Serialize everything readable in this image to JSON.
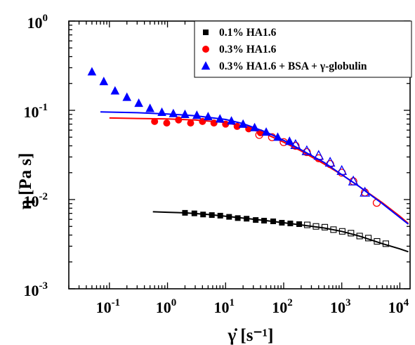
{
  "chart_data": {
    "type": "scatter",
    "xlabel": "γ̇ [s⁻¹]",
    "ylabel": "η [Pa s]",
    "xscale": "log",
    "yscale": "log",
    "xlim": [
      0.02,
      15000
    ],
    "ylim": [
      0.001,
      1
    ],
    "grid": false,
    "legend_position": "top-right",
    "x_ticks": [
      {
        "base": "10",
        "exp": "-1",
        "value": 0.1
      },
      {
        "base": "10",
        "exp": "0",
        "value": 1
      },
      {
        "base": "10",
        "exp": "1",
        "value": 10
      },
      {
        "base": "10",
        "exp": "2",
        "value": 100
      },
      {
        "base": "10",
        "exp": "3",
        "value": 1000
      },
      {
        "base": "10",
        "exp": "4",
        "value": 10000
      }
    ],
    "y_ticks": [
      {
        "base": "10",
        "exp": "-3",
        "value": 0.001
      },
      {
        "base": "10",
        "exp": "-2",
        "value": 0.01
      },
      {
        "base": "10",
        "exp": "-1",
        "value": 0.1
      },
      {
        "base": "10",
        "exp": "0",
        "value": 1
      }
    ],
    "series": [
      {
        "name": "0.1% HA1.6",
        "color": "#000000",
        "marker": "square",
        "filled_points": [
          [
            2.0,
            0.0071
          ],
          [
            2.9,
            0.007
          ],
          [
            4.1,
            0.0068
          ],
          [
            5.8,
            0.0067
          ],
          [
            8.1,
            0.0066
          ],
          [
            11.5,
            0.0064
          ],
          [
            16.2,
            0.0062
          ],
          [
            23,
            0.0061
          ],
          [
            33,
            0.0059
          ],
          [
            46,
            0.0058
          ],
          [
            66,
            0.0057
          ],
          [
            93,
            0.0055
          ],
          [
            130,
            0.0054
          ],
          [
            185,
            0.0053
          ]
        ],
        "open_points": [
          [
            255,
            0.0052
          ],
          [
            360,
            0.005
          ],
          [
            510,
            0.0049
          ],
          [
            720,
            0.0046
          ],
          [
            1020,
            0.0044
          ],
          [
            1440,
            0.0042
          ],
          [
            2030,
            0.0039
          ],
          [
            2870,
            0.0037
          ],
          [
            4050,
            0.0034
          ],
          [
            5730,
            0.0032
          ]
        ],
        "fit_curve": [
          [
            0.56,
            0.0073
          ],
          [
            1,
            0.0072
          ],
          [
            2,
            0.0071
          ],
          [
            5,
            0.0068
          ],
          [
            10,
            0.0065
          ],
          [
            20,
            0.0062
          ],
          [
            50,
            0.0058
          ],
          [
            100,
            0.0055
          ],
          [
            200,
            0.0052
          ],
          [
            500,
            0.0048
          ],
          [
            1000,
            0.0044
          ],
          [
            2000,
            0.0039
          ],
          [
            5000,
            0.0032
          ],
          [
            10000,
            0.0028
          ],
          [
            14000,
            0.0026
          ]
        ]
      },
      {
        "name": "0.3% HA1.6",
        "color": "#ff0000",
        "marker": "circle",
        "filled_points": [
          [
            0.6,
            0.075
          ],
          [
            0.97,
            0.072
          ],
          [
            1.55,
            0.078
          ],
          [
            2.5,
            0.072
          ],
          [
            4.0,
            0.075
          ],
          [
            6.3,
            0.072
          ],
          [
            10,
            0.07
          ],
          [
            15.8,
            0.066
          ],
          [
            25,
            0.062
          ],
          [
            39.8,
            0.056
          ]
        ],
        "open_points": [
          [
            38,
            0.053
          ],
          [
            63,
            0.05
          ],
          [
            100,
            0.044
          ],
          [
            160,
            0.04
          ],
          [
            250,
            0.034
          ],
          [
            400,
            0.029
          ],
          [
            630,
            0.025
          ],
          [
            1000,
            0.02
          ],
          [
            1580,
            0.016
          ],
          [
            2500,
            0.012
          ],
          [
            4000,
            0.0092
          ]
        ],
        "fit_curve": [
          [
            0.1,
            0.082
          ],
          [
            0.3,
            0.081
          ],
          [
            1,
            0.08
          ],
          [
            3,
            0.078
          ],
          [
            10,
            0.073
          ],
          [
            20,
            0.066
          ],
          [
            50,
            0.054
          ],
          [
            100,
            0.044
          ],
          [
            200,
            0.035
          ],
          [
            500,
            0.025
          ],
          [
            1000,
            0.019
          ],
          [
            2000,
            0.014
          ],
          [
            5000,
            0.0092
          ],
          [
            10000,
            0.0065
          ],
          [
            14000,
            0.0054
          ]
        ]
      },
      {
        "name": "0.3% HA1.6 + BSA + γ-globulin",
        "color": "#0000ff",
        "marker": "triangle",
        "filled_points": [
          [
            0.05,
            0.27
          ],
          [
            0.08,
            0.21
          ],
          [
            0.125,
            0.165
          ],
          [
            0.2,
            0.14
          ],
          [
            0.32,
            0.12
          ],
          [
            0.5,
            0.105
          ],
          [
            0.8,
            0.095
          ],
          [
            1.26,
            0.092
          ],
          [
            2.0,
            0.09
          ],
          [
            3.2,
            0.088
          ],
          [
            5,
            0.085
          ],
          [
            8,
            0.08
          ],
          [
            12.6,
            0.076
          ],
          [
            20,
            0.07
          ],
          [
            31.6,
            0.064
          ],
          [
            50,
            0.057
          ],
          [
            79,
            0.05
          ],
          [
            126,
            0.045
          ]
        ],
        "open_points": [
          [
            160,
            0.041
          ],
          [
            250,
            0.035
          ],
          [
            400,
            0.031
          ],
          [
            630,
            0.026
          ],
          [
            1000,
            0.021
          ],
          [
            1580,
            0.016
          ],
          [
            2500,
            0.012
          ]
        ],
        "fit_curve": [
          [
            0.07,
            0.096
          ],
          [
            0.3,
            0.094
          ],
          [
            1,
            0.091
          ],
          [
            3,
            0.087
          ],
          [
            10,
            0.079
          ],
          [
            20,
            0.071
          ],
          [
            50,
            0.057
          ],
          [
            100,
            0.046
          ],
          [
            200,
            0.036
          ],
          [
            500,
            0.026
          ],
          [
            1000,
            0.019
          ],
          [
            2000,
            0.014
          ],
          [
            5000,
            0.009
          ],
          [
            10000,
            0.0063
          ],
          [
            14000,
            0.0053
          ]
        ]
      }
    ]
  }
}
